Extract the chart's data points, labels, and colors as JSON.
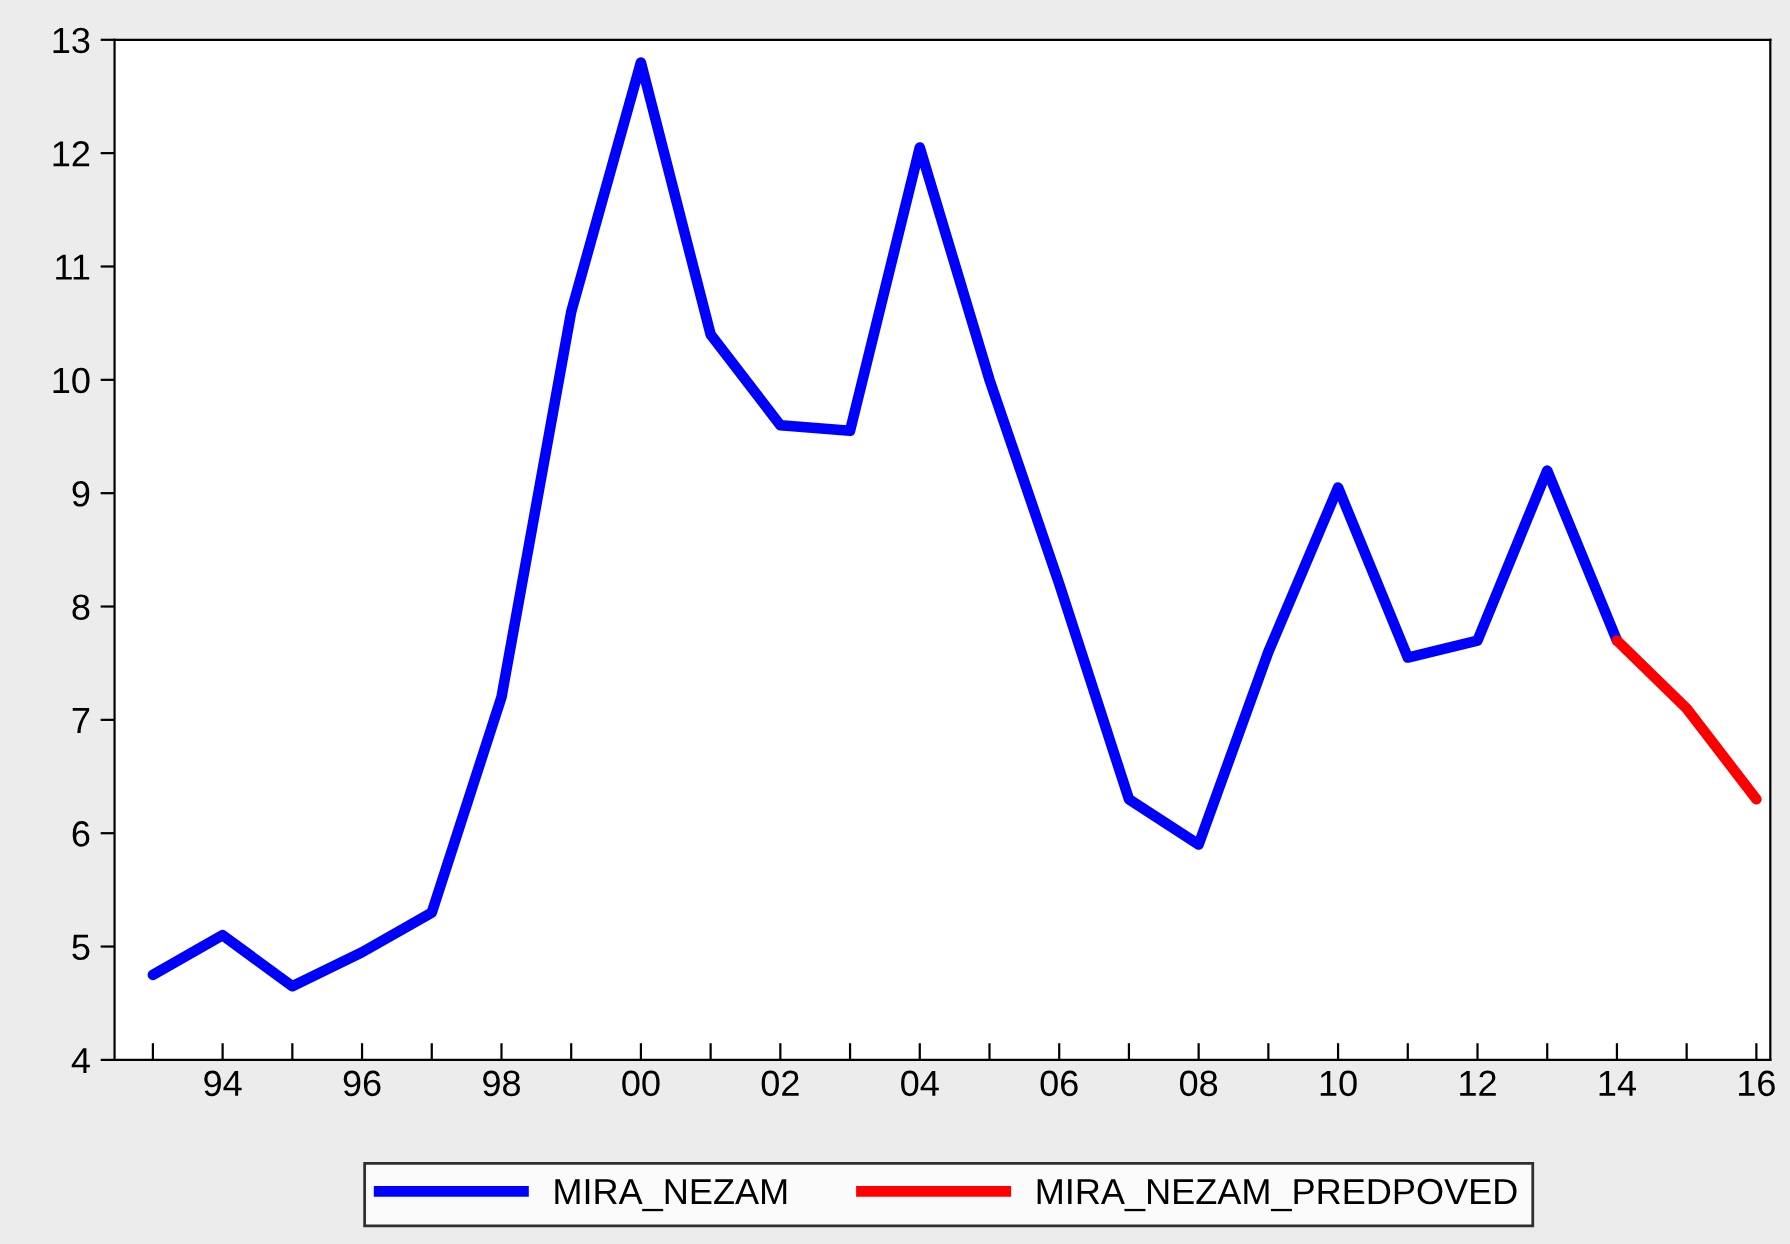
{
  "chart_data": {
    "type": "line",
    "x": [
      1993,
      1994,
      1995,
      1996,
      1997,
      1998,
      1999,
      2000,
      2001,
      2002,
      2003,
      2004,
      2005,
      2006,
      2007,
      2008,
      2009,
      2010,
      2011,
      2012,
      2013,
      2014,
      2015,
      2016
    ],
    "series": [
      {
        "name": "MIRA_NEZAM",
        "color": "#0000ff",
        "values": [
          4.75,
          5.1,
          4.65,
          4.95,
          5.3,
          7.2,
          10.6,
          12.8,
          10.4,
          9.6,
          9.55,
          12.05,
          10.0,
          8.2,
          6.3,
          5.9,
          7.6,
          9.05,
          7.55,
          7.7,
          9.2,
          7.7,
          null,
          null
        ]
      },
      {
        "name": "MIRA_NEZAM_PREDPOVED",
        "color": "#ff0000",
        "values": [
          null,
          null,
          null,
          null,
          null,
          null,
          null,
          null,
          null,
          null,
          null,
          null,
          null,
          null,
          null,
          null,
          null,
          null,
          null,
          null,
          null,
          7.7,
          7.1,
          6.3
        ]
      }
    ],
    "xlim": [
      1992.45,
      2016.2
    ],
    "xticks": [
      {
        "value": 1993,
        "label": null
      },
      {
        "value": 1994,
        "label": "94"
      },
      {
        "value": 1995,
        "label": null
      },
      {
        "value": 1996,
        "label": "96"
      },
      {
        "value": 1997,
        "label": null
      },
      {
        "value": 1998,
        "label": "98"
      },
      {
        "value": 1999,
        "label": null
      },
      {
        "value": 2000,
        "label": "00"
      },
      {
        "value": 2001,
        "label": null
      },
      {
        "value": 2002,
        "label": "02"
      },
      {
        "value": 2003,
        "label": null
      },
      {
        "value": 2004,
        "label": "04"
      },
      {
        "value": 2005,
        "label": null
      },
      {
        "value": 2006,
        "label": "06"
      },
      {
        "value": 2007,
        "label": null
      },
      {
        "value": 2008,
        "label": "08"
      },
      {
        "value": 2009,
        "label": null
      },
      {
        "value": 2010,
        "label": "10"
      },
      {
        "value": 2011,
        "label": null
      },
      {
        "value": 2012,
        "label": "12"
      },
      {
        "value": 2013,
        "label": null
      },
      {
        "value": 2014,
        "label": "14"
      },
      {
        "value": 2015,
        "label": null
      },
      {
        "value": 2016,
        "label": "16"
      }
    ],
    "ylim": [
      4,
      13
    ],
    "yticks": [
      4,
      5,
      6,
      7,
      8,
      9,
      10,
      11,
      12,
      13
    ],
    "grid": false,
    "legend": "bottom",
    "line_style": "solid",
    "marker": "none"
  }
}
